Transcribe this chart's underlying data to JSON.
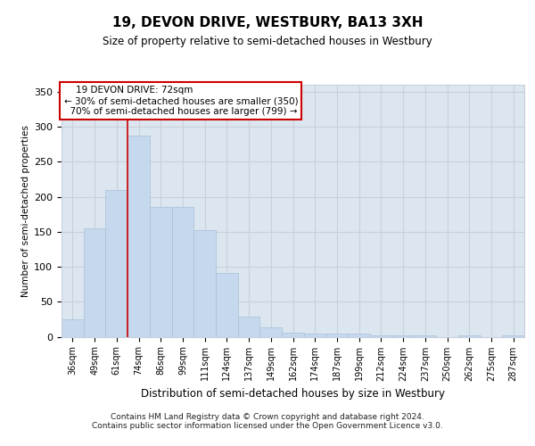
{
  "title": "19, DEVON DRIVE, WESTBURY, BA13 3XH",
  "subtitle": "Size of property relative to semi-detached houses in Westbury",
  "xlabel": "Distribution of semi-detached houses by size in Westbury",
  "ylabel": "Number of semi-detached properties",
  "categories": [
    "36sqm",
    "49sqm",
    "61sqm",
    "74sqm",
    "86sqm",
    "99sqm",
    "111sqm",
    "124sqm",
    "137sqm",
    "149sqm",
    "162sqm",
    "174sqm",
    "187sqm",
    "199sqm",
    "212sqm",
    "224sqm",
    "237sqm",
    "250sqm",
    "262sqm",
    "275sqm",
    "287sqm"
  ],
  "values": [
    25,
    155,
    210,
    288,
    185,
    185,
    152,
    91,
    29,
    14,
    6,
    5,
    5,
    4,
    2,
    2,
    2,
    0,
    2,
    0,
    2
  ],
  "bar_color": "#c5d8ed",
  "bar_edge_color": "#a8c0d8",
  "bar_width": 1.0,
  "vline_color": "#cc0000",
  "annotation_box_color": "#cc0000",
  "ylim": [
    0,
    360
  ],
  "yticks": [
    0,
    50,
    100,
    150,
    200,
    250,
    300,
    350
  ],
  "grid_color": "#c8d0dc",
  "background_color": "#dce6f0",
  "footer1": "Contains HM Land Registry data © Crown copyright and database right 2024.",
  "footer2": "Contains public sector information licensed under the Open Government Licence v3.0."
}
